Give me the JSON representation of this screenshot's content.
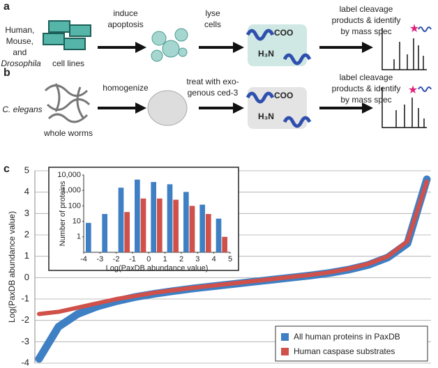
{
  "panel_a": {
    "label": "a",
    "organisms": [
      "Human,",
      "Mouse,",
      "and"
    ],
    "organism_species": "Drosophila",
    "source": "cell lines",
    "step1": [
      "induce",
      "apoptosis"
    ],
    "step2": [
      "lyse",
      "cells"
    ],
    "cooh": "COO",
    "amine": "H₃N",
    "step3": [
      "label cleavage",
      "products & identify",
      "by mass spec"
    ]
  },
  "panel_b": {
    "label": "b",
    "organism": "C. elegans",
    "source": "whole worms",
    "step1": "homogenize",
    "step2": [
      "treat with exo-",
      "genous ced-3"
    ],
    "cooh": "COO",
    "amine": "H₃N",
    "step3": [
      "label cleavage",
      "products & identify",
      "by mass spec"
    ]
  },
  "panel_c_label": "c",
  "chart_data": [
    {
      "type": "line",
      "ylabel": "Log(PaxDB abundance value)",
      "categories": [
        null,
        null,
        null,
        null,
        null,
        null,
        null,
        null,
        null,
        null,
        null,
        null,
        null,
        null,
        null,
        null,
        null,
        null,
        null,
        null,
        null
      ],
      "series": [
        {
          "name": "All human proteins in PaxDB",
          "color": "#3f7fc4",
          "values": [
            -3.8,
            -2.3,
            -1.7,
            -1.35,
            -1.1,
            -0.9,
            -0.75,
            -0.62,
            -0.5,
            -0.4,
            -0.3,
            -0.2,
            -0.1,
            0,
            0.1,
            0.22,
            0.38,
            0.6,
            0.95,
            1.6,
            4.6
          ]
        },
        {
          "name": "Human caspase substrates",
          "color": "#d0504a",
          "values": [
            -1.7,
            -1.6,
            -1.4,
            -1.2,
            -1.0,
            -0.85,
            -0.7,
            -0.58,
            -0.47,
            -0.37,
            -0.27,
            -0.17,
            -0.07,
            0.03,
            0.13,
            0.25,
            0.42,
            0.65,
            1.0,
            1.7,
            4.5
          ]
        }
      ],
      "ylim": [
        -4,
        5
      ],
      "yticks": [
        -4,
        -3,
        -2,
        -1,
        0,
        1,
        2,
        3,
        4,
        5
      ],
      "grid": true,
      "legend": "lower right"
    },
    {
      "type": "histogram",
      "xlabel": "Log(PaxDB abundance value)",
      "ylabel": "Number of proteins",
      "bins": [
        -4,
        -3,
        -2,
        -1,
        0,
        1,
        2,
        3,
        4,
        5
      ],
      "series": [
        {
          "name": "All human proteins in PaxDB",
          "color": "#3f7fc4",
          "values": [
            8,
            30,
            1500,
            5000,
            3500,
            2500,
            800,
            120,
            15
          ]
        },
        {
          "name": "Human caspase substrates",
          "color": "#d0504a",
          "values": [
            null,
            null,
            40,
            300,
            300,
            250,
            100,
            30,
            1
          ]
        }
      ],
      "xlim": [
        -4,
        5
      ],
      "xticks": [
        -4,
        -3,
        -2,
        -1,
        0,
        1,
        2,
        3,
        4,
        5
      ],
      "ylim": [
        0.1,
        10000
      ],
      "log_scale": true,
      "yticks": [
        1,
        10,
        100,
        {
          "value": 1000,
          "label": "1,000"
        },
        {
          "value": 10000,
          "label": "10,000"
        }
      ]
    }
  ]
}
